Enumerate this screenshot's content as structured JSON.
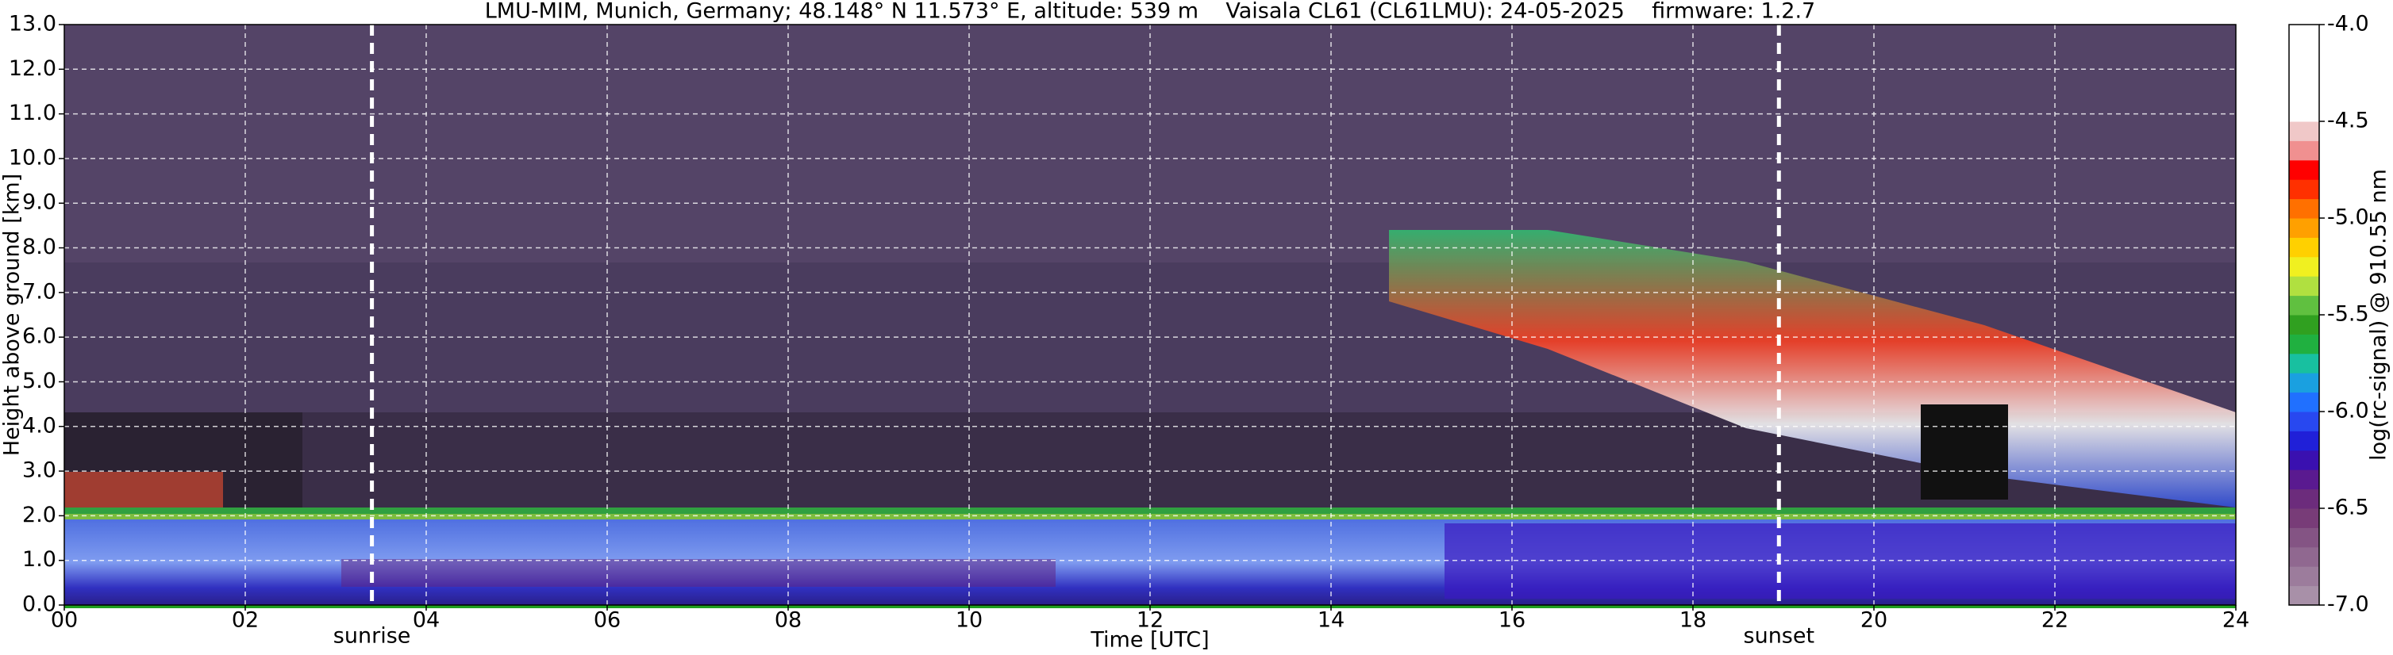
{
  "chart_data": {
    "type": "heatmap",
    "title": "LMU-MIM, Munich, Germany; 48.148° N 11.573° E, altitude: 539 m    Vaisala CL61 (CL61LMU): 24-05-2025    firmware: 1.2.7",
    "x_label": "Time [UTC]",
    "y_label": "Height above ground [km]",
    "xlim": [
      0,
      24
    ],
    "xticks": [
      {
        "value": 0,
        "label": "00"
      },
      {
        "value": 2,
        "label": "02"
      },
      {
        "value": 4,
        "label": "04"
      },
      {
        "value": 6,
        "label": "06"
      },
      {
        "value": 8,
        "label": "08"
      },
      10,
      12,
      14,
      16,
      18,
      20,
      22,
      24
    ],
    "ylim": [
      0,
      13
    ],
    "yticks": [
      {
        "value": 0,
        "label": "0.0"
      },
      {
        "value": 1,
        "label": "1.0"
      },
      {
        "value": 2,
        "label": "2.0"
      },
      {
        "value": 3,
        "label": "3.0"
      },
      {
        "value": 4,
        "label": "4.0"
      },
      {
        "value": 5,
        "label": "5.0"
      },
      {
        "value": 6,
        "label": "6.0"
      },
      {
        "value": 7,
        "label": "7.0"
      },
      {
        "value": 8,
        "label": "8.0"
      },
      {
        "value": 9,
        "label": "9.0"
      },
      {
        "value": 10,
        "label": "10.0"
      },
      {
        "value": 11,
        "label": "11.0"
      },
      {
        "value": 12,
        "label": "12.0"
      },
      {
        "value": 13,
        "label": "13.0"
      }
    ],
    "grid": true,
    "events": [
      {
        "label": "sunrise",
        "x": 3.4
      },
      {
        "label": "sunset",
        "x": 18.95
      }
    ],
    "colorbar": {
      "label": "log(rc-signal) @ 910.55 nm",
      "clim": [
        -7,
        -4
      ],
      "ticks": [
        {
          "value": -7,
          "label": "-7.0"
        },
        -6.5,
        {
          "value": -6,
          "label": "-6.0"
        },
        -5.5,
        {
          "value": -5,
          "label": "-5.0"
        },
        -4.5,
        {
          "value": -4,
          "label": "-4.0"
        }
      ],
      "colors": [
        "#a890a8",
        "#9c7c9c",
        "#906890",
        "#845484",
        "#783c78",
        "#6c2c7c",
        "#5a1a90",
        "#3a10b0",
        "#2020d8",
        "#2848f0",
        "#2070ff",
        "#1aa0e0",
        "#18c0a0",
        "#20b040",
        "#30a020",
        "#60c040",
        "#b0e040",
        "#f0f020",
        "#ffd000",
        "#ffa000",
        "#ff7000",
        "#ff3000",
        "#ff0000",
        "#f09090",
        "#f0c8c8",
        "#ffffff",
        "#ffffff",
        "#ffffff",
        "#ffffff",
        "#ffffff"
      ]
    }
  }
}
